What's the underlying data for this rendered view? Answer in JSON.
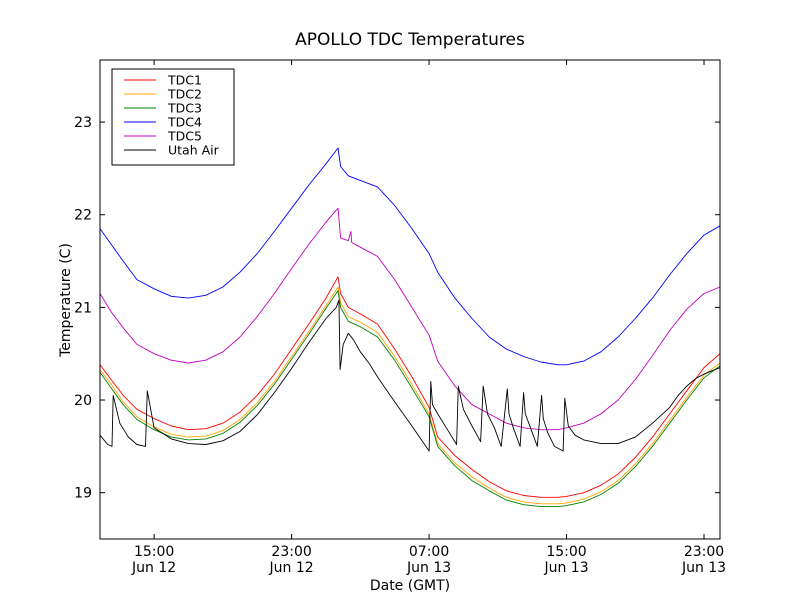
{
  "chart_data": {
    "type": "line",
    "title": "APOLLO TDC Temperatures",
    "xlabel": "Date (GMT)",
    "ylabel": "Temperature (C)",
    "x_units": "hours since 00:00 Jun 12 (GMT)",
    "xlim": [
      11.85,
      47.93
    ],
    "ylim": [
      18.5,
      23.67
    ],
    "grid": false,
    "legend_position": "top-left",
    "xticks": [
      {
        "value": 15,
        "label_time": "15:00",
        "label_date": "Jun 12"
      },
      {
        "value": 23,
        "label_time": "23:00",
        "label_date": "Jun 12"
      },
      {
        "value": 31,
        "label_time": "07:00",
        "label_date": "Jun 13"
      },
      {
        "value": 39,
        "label_time": "15:00",
        "label_date": "Jun 13"
      },
      {
        "value": 47,
        "label_time": "23:00",
        "label_date": "Jun 13"
      }
    ],
    "yticks": [
      {
        "value": 19,
        "label": "19"
      },
      {
        "value": 20,
        "label": "20"
      },
      {
        "value": 21,
        "label": "21"
      },
      {
        "value": 22,
        "label": "22"
      },
      {
        "value": 23,
        "label": "23"
      }
    ],
    "series": [
      {
        "name": "TDC1",
        "color": "#ff0000",
        "x": [
          11.85,
          12.5,
          13.2,
          14.0,
          15.0,
          16.0,
          17.0,
          18.0,
          19.0,
          20.0,
          21.0,
          22.0,
          23.0,
          24.0,
          25.0,
          25.7,
          25.85,
          26.3,
          27.0,
          28.0,
          29.0,
          30.0,
          31.0,
          31.5,
          32.5,
          33.5,
          34.5,
          35.5,
          36.5,
          37.5,
          38.5,
          39.0,
          40.0,
          41.0,
          42.0,
          43.0,
          44.0,
          45.0,
          46.0,
          47.0,
          47.93
        ],
        "y": [
          20.38,
          20.22,
          20.05,
          19.9,
          19.8,
          19.72,
          19.68,
          19.69,
          19.75,
          19.87,
          20.05,
          20.28,
          20.55,
          20.82,
          21.1,
          21.33,
          21.15,
          21.0,
          20.93,
          20.82,
          20.55,
          20.25,
          19.92,
          19.6,
          19.4,
          19.25,
          19.12,
          19.02,
          18.97,
          18.95,
          18.95,
          18.96,
          19.0,
          19.08,
          19.2,
          19.38,
          19.6,
          19.85,
          20.1,
          20.35,
          20.5
        ]
      },
      {
        "name": "TDC2",
        "color": "#ffa500",
        "x": [
          11.85,
          12.5,
          13.2,
          14.0,
          15.0,
          16.0,
          17.0,
          18.0,
          19.0,
          20.0,
          21.0,
          22.0,
          23.0,
          24.0,
          25.0,
          25.7,
          25.85,
          26.3,
          27.0,
          28.0,
          29.0,
          30.0,
          31.0,
          31.5,
          32.5,
          33.5,
          34.5,
          35.5,
          36.5,
          37.5,
          38.5,
          39.0,
          40.0,
          41.0,
          42.0,
          43.0,
          44.0,
          45.0,
          46.0,
          47.0,
          47.93
        ],
        "y": [
          20.33,
          20.17,
          19.98,
          19.82,
          19.71,
          19.63,
          19.6,
          19.61,
          19.67,
          19.79,
          19.97,
          20.2,
          20.47,
          20.74,
          21.02,
          21.22,
          21.05,
          20.9,
          20.84,
          20.73,
          20.47,
          20.17,
          19.85,
          19.53,
          19.32,
          19.17,
          19.05,
          18.95,
          18.9,
          18.88,
          18.88,
          18.89,
          18.93,
          19.01,
          19.13,
          19.31,
          19.53,
          19.78,
          20.03,
          20.27,
          20.4
        ]
      },
      {
        "name": "TDC3",
        "color": "#008000",
        "x": [
          11.85,
          12.5,
          13.2,
          14.0,
          15.0,
          16.0,
          17.0,
          18.0,
          19.0,
          20.0,
          21.0,
          22.0,
          23.0,
          24.0,
          25.0,
          25.7,
          25.85,
          26.3,
          27.0,
          28.0,
          29.0,
          30.0,
          31.0,
          31.5,
          32.5,
          33.5,
          34.5,
          35.5,
          36.5,
          37.5,
          38.5,
          39.0,
          40.0,
          41.0,
          42.0,
          43.0,
          44.0,
          45.0,
          46.0,
          47.0,
          47.93
        ],
        "y": [
          20.3,
          20.13,
          19.95,
          19.79,
          19.68,
          19.6,
          19.57,
          19.58,
          19.64,
          19.76,
          19.94,
          20.17,
          20.44,
          20.71,
          20.99,
          21.18,
          21.0,
          20.85,
          20.79,
          20.68,
          20.43,
          20.13,
          19.82,
          19.5,
          19.29,
          19.13,
          19.02,
          18.92,
          18.87,
          18.85,
          18.85,
          18.86,
          18.9,
          18.98,
          19.1,
          19.28,
          19.5,
          19.75,
          20.0,
          20.24,
          20.37
        ]
      },
      {
        "name": "TDC4",
        "color": "#0000ff",
        "x": [
          11.85,
          12.5,
          13.2,
          14.0,
          15.0,
          16.0,
          17.0,
          18.0,
          19.0,
          20.0,
          21.0,
          22.0,
          23.0,
          24.0,
          25.0,
          25.7,
          25.85,
          26.3,
          27.0,
          28.0,
          29.0,
          30.0,
          31.0,
          31.5,
          32.5,
          33.5,
          34.5,
          35.5,
          36.5,
          37.5,
          38.5,
          39.0,
          40.0,
          41.0,
          42.0,
          43.0,
          44.0,
          45.0,
          46.0,
          47.0,
          47.93
        ],
        "y": [
          21.85,
          21.68,
          21.5,
          21.3,
          21.2,
          21.12,
          21.1,
          21.13,
          21.22,
          21.38,
          21.58,
          21.82,
          22.07,
          22.32,
          22.55,
          22.72,
          22.52,
          22.42,
          22.37,
          22.3,
          22.1,
          21.85,
          21.58,
          21.38,
          21.1,
          20.88,
          20.68,
          20.55,
          20.47,
          20.41,
          20.38,
          20.38,
          20.42,
          20.52,
          20.68,
          20.88,
          21.1,
          21.35,
          21.58,
          21.78,
          21.88
        ]
      },
      {
        "name": "TDC5",
        "color": "#bf00bf",
        "x": [
          11.85,
          12.5,
          13.2,
          14.0,
          15.0,
          16.0,
          17.0,
          18.0,
          19.0,
          20.0,
          21.0,
          22.0,
          23.0,
          24.0,
          25.0,
          25.7,
          25.85,
          26.3,
          26.45,
          26.5,
          27.0,
          28.0,
          29.0,
          30.0,
          31.0,
          31.5,
          32.5,
          33.5,
          34.5,
          35.5,
          36.5,
          37.5,
          38.5,
          39.0,
          40.0,
          41.0,
          42.0,
          43.0,
          44.0,
          45.0,
          46.0,
          47.0,
          47.93
        ],
        "y": [
          21.15,
          20.95,
          20.78,
          20.6,
          20.5,
          20.43,
          20.4,
          20.43,
          20.52,
          20.68,
          20.9,
          21.15,
          21.42,
          21.68,
          21.92,
          22.07,
          21.75,
          21.72,
          21.82,
          21.7,
          21.65,
          21.55,
          21.3,
          21.0,
          20.7,
          20.42,
          20.15,
          19.95,
          19.85,
          19.75,
          19.7,
          19.68,
          19.68,
          19.7,
          19.75,
          19.85,
          20.0,
          20.22,
          20.48,
          20.75,
          20.98,
          21.15,
          21.22
        ]
      },
      {
        "name": "Utah Air",
        "color": "#000000",
        "x": [
          11.85,
          12.3,
          12.55,
          12.62,
          13.0,
          13.5,
          14.0,
          14.5,
          14.6,
          15.0,
          16.0,
          17.0,
          18.0,
          19.0,
          20.0,
          21.0,
          22.0,
          23.0,
          24.0,
          25.0,
          25.6,
          25.75,
          25.82,
          26.0,
          26.3,
          26.6,
          27.0,
          27.5,
          28.0,
          29.0,
          30.0,
          31.0,
          31.1,
          31.2,
          31.5,
          32.0,
          32.6,
          32.7,
          33.0,
          33.5,
          34.0,
          34.15,
          34.4,
          34.8,
          35.2,
          35.55,
          35.65,
          35.9,
          36.3,
          36.5,
          36.6,
          36.9,
          37.3,
          37.55,
          37.65,
          37.9,
          38.3,
          38.8,
          38.9,
          39.1,
          39.5,
          40.0,
          41.0,
          42.0,
          43.0,
          44.0,
          45.0,
          45.5,
          46.0,
          46.5,
          47.0,
          47.93
        ],
        "y": [
          19.62,
          19.52,
          19.5,
          20.05,
          19.75,
          19.6,
          19.52,
          19.5,
          20.1,
          19.7,
          19.58,
          19.53,
          19.52,
          19.56,
          19.66,
          19.84,
          20.08,
          20.34,
          20.62,
          20.88,
          21.0,
          21.08,
          20.33,
          20.6,
          20.72,
          20.65,
          20.52,
          20.4,
          20.25,
          19.98,
          19.72,
          19.45,
          20.2,
          19.95,
          19.85,
          19.7,
          19.52,
          20.15,
          19.9,
          19.72,
          19.55,
          20.15,
          19.85,
          19.7,
          19.5,
          20.12,
          19.85,
          19.7,
          19.5,
          20.08,
          19.85,
          19.7,
          19.5,
          20.05,
          19.8,
          19.65,
          19.5,
          19.45,
          20.02,
          19.72,
          19.62,
          19.57,
          19.53,
          19.53,
          19.6,
          19.75,
          19.92,
          20.05,
          20.15,
          20.23,
          20.28,
          20.35
        ]
      }
    ]
  }
}
